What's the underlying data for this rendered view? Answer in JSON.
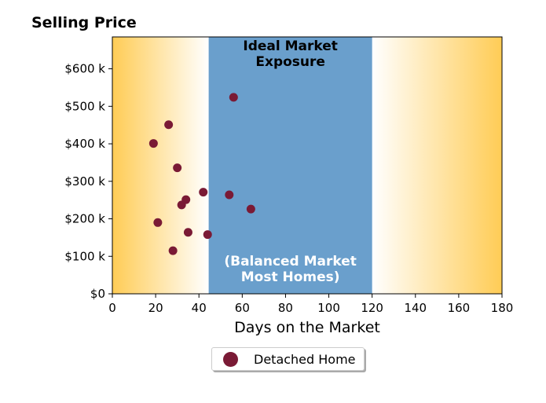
{
  "chart_data": {
    "type": "scatter",
    "title": "Selling Price",
    "xlabel": "Days on the Market",
    "ylabel": "",
    "xlim": [
      0,
      180
    ],
    "ylim": [
      0,
      685000
    ],
    "x_ticks": [
      0,
      20,
      40,
      60,
      80,
      100,
      120,
      140,
      160,
      180
    ],
    "y_ticks": [
      0,
      100000,
      200000,
      300000,
      400000,
      500000,
      600000
    ],
    "y_tick_labels": [
      "$0",
      "$100 k",
      "$200 k",
      "$300 k",
      "$400 k",
      "$500 k",
      "$600 k"
    ],
    "series": [
      {
        "name": "Detached Home",
        "color": "#7a1a35",
        "points": [
          {
            "x": 56,
            "y": 524000
          },
          {
            "x": 26,
            "y": 451000
          },
          {
            "x": 19,
            "y": 401000
          },
          {
            "x": 30,
            "y": 336000
          },
          {
            "x": 42,
            "y": 271000
          },
          {
            "x": 54,
            "y": 264000
          },
          {
            "x": 34,
            "y": 251000
          },
          {
            "x": 32,
            "y": 237000
          },
          {
            "x": 64,
            "y": 226000
          },
          {
            "x": 21,
            "y": 190000
          },
          {
            "x": 35,
            "y": 164000
          },
          {
            "x": 44,
            "y": 158000
          },
          {
            "x": 28,
            "y": 115000
          }
        ]
      }
    ],
    "regions": [
      {
        "x_start": 44.5,
        "x_end": 120,
        "color": "#6a9fcc",
        "label_top": "Ideal Market\nExposure",
        "label_bottom": "(Balanced Market\nMost Homes)"
      }
    ],
    "background_gradient": {
      "edge_color": "#ffcc55",
      "center_color": "#ffffff"
    },
    "legend": {
      "position": "below",
      "entries": [
        "Detached Home"
      ]
    },
    "grid": false
  }
}
